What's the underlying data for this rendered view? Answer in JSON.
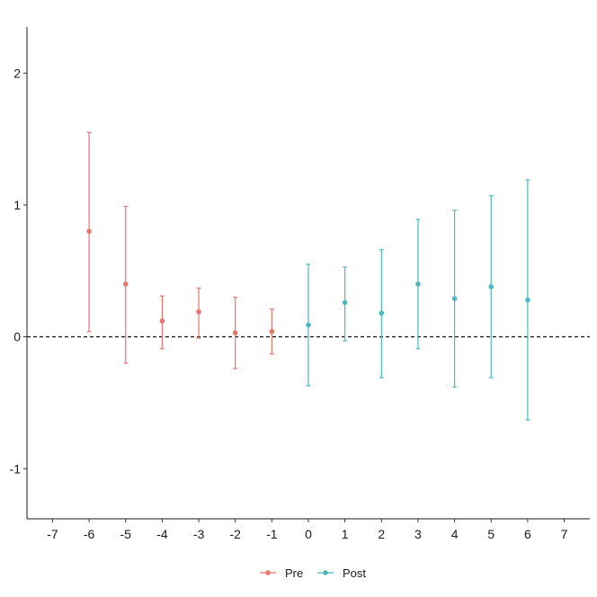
{
  "chart_data": {
    "type": "scatter",
    "title": "",
    "xlabel": "",
    "ylabel": "",
    "xlim": [
      -7.7,
      7.7
    ],
    "ylim": [
      -1.38,
      2.35
    ],
    "x_ticks": [
      -7,
      -6,
      -5,
      -4,
      -3,
      -2,
      -1,
      0,
      1,
      2,
      3,
      4,
      5,
      6,
      7
    ],
    "y_ticks": [
      -1,
      0,
      1,
      2
    ],
    "reference_line": {
      "y": 0,
      "style": "dashed"
    },
    "grid": false,
    "legend_position": "bottom",
    "series": [
      {
        "name": "Pre",
        "color": "#E5776C",
        "points": [
          {
            "x": -6,
            "y": 0.8,
            "lower": 0.04,
            "upper": 1.55
          },
          {
            "x": -5,
            "y": 0.4,
            "lower": -0.2,
            "upper": 0.99
          },
          {
            "x": -4,
            "y": 0.12,
            "lower": -0.09,
            "upper": 0.31
          },
          {
            "x": -3,
            "y": 0.19,
            "lower": -0.01,
            "upper": 0.37
          },
          {
            "x": -2,
            "y": 0.03,
            "lower": -0.24,
            "upper": 0.3
          },
          {
            "x": -1,
            "y": 0.04,
            "lower": -0.13,
            "upper": 0.21
          }
        ]
      },
      {
        "name": "Post",
        "color": "#4DB8BF",
        "points": [
          {
            "x": 0,
            "y": 0.09,
            "lower": -0.37,
            "upper": 0.55
          },
          {
            "x": 1,
            "y": 0.26,
            "lower": -0.03,
            "upper": 0.53
          },
          {
            "x": 2,
            "y": 0.18,
            "lower": -0.31,
            "upper": 0.66
          },
          {
            "x": 3,
            "y": 0.4,
            "lower": -0.09,
            "upper": 0.89
          },
          {
            "x": 4,
            "y": 0.29,
            "lower": -0.38,
            "upper": 0.96
          },
          {
            "x": 5,
            "y": 0.38,
            "lower": -0.31,
            "upper": 1.07
          },
          {
            "x": 6,
            "y": 0.28,
            "lower": -0.63,
            "upper": 1.19
          }
        ]
      }
    ]
  }
}
